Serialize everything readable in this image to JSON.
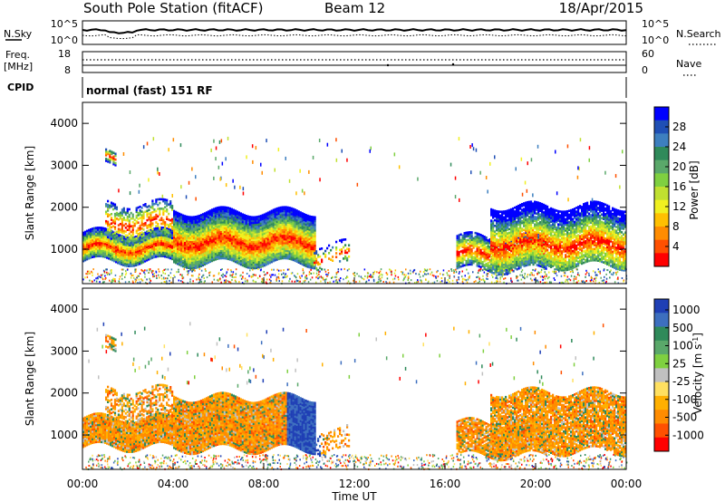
{
  "header": {
    "station": "South Pole Station (fitACF)",
    "beam": "Beam 12",
    "date": "18/Apr/2015"
  },
  "noise_panel": {
    "left_label": "N.Sky",
    "right_label": "N.Search",
    "left_ticks": [
      "10^5",
      "10^0"
    ],
    "right_ticks": [
      "10^5",
      "10^0"
    ]
  },
  "freq_panel": {
    "label_line1": "Freq.",
    "label_line2": "[MHz]",
    "left_ticks": [
      "18",
      "8"
    ],
    "right_ticks": [
      "60",
      "0"
    ],
    "right_label": "Nave"
  },
  "cpid": {
    "label": "CPID",
    "text": "normal (fast) 151 RF"
  },
  "x_axis": {
    "label": "Time UT",
    "ticks": [
      "00:00",
      "04:00",
      "08:00",
      "12:00",
      "16:00",
      "20:00",
      "00:00"
    ]
  },
  "chart_data": [
    {
      "type": "heatmap",
      "name": "Power",
      "ylabel": "Slant Range [km]",
      "yticks": [
        "1000",
        "2000",
        "3000",
        "4000"
      ],
      "ylim": [
        180,
        4500
      ],
      "xlim": [
        0,
        24
      ],
      "colorbar": {
        "label": "Power [dB]",
        "ticks": [
          "4",
          "8",
          "12",
          "16",
          "20",
          "24",
          "28"
        ],
        "range": [
          0,
          30
        ],
        "colors": [
          "#0000ff",
          "#1f4fb5",
          "#3d7fbf",
          "#2f8a5a",
          "#5aa86a",
          "#7fd040",
          "#c0e030",
          "#f0f020",
          "#ffc000",
          "#ff8c00",
          "#ff5000",
          "#ff0000"
        ]
      }
    },
    {
      "type": "heatmap",
      "name": "Velocity",
      "ylabel": "Slant Range [km]",
      "yticks": [
        "1000",
        "2000",
        "3000",
        "4000"
      ],
      "ylim": [
        180,
        4500
      ],
      "xlim": [
        0,
        24
      ],
      "colorbar": {
        "label": "Velocity [m s",
        "label_sup": "-1",
        "label_end": "]",
        "ticks": [
          "1000",
          "500",
          "100",
          "25",
          "-25",
          "-100",
          "-500",
          "-1000"
        ],
        "colors": [
          "#1f3fb5",
          "#3d6fbf",
          "#2f8a5a",
          "#5aa86a",
          "#7fd040",
          "#c0c0c0",
          "#ffe060",
          "#ffb000",
          "#ff8c00",
          "#ff5000",
          "#ff0000"
        ]
      }
    }
  ]
}
